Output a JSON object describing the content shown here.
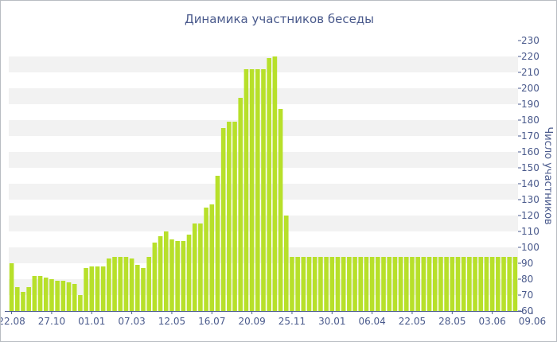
{
  "colors": {
    "bar": "#b7e02a",
    "band": "#f2f2f2",
    "axis": "#4a5a8c",
    "text": "#4a5a8c"
  },
  "chart_data": {
    "type": "bar",
    "title": "Динамика участников беседы",
    "xlabel": "",
    "ylabel": "Число участников",
    "ylim": [
      60,
      230
    ],
    "yticks": [
      60,
      70,
      80,
      90,
      100,
      110,
      120,
      130,
      140,
      150,
      160,
      170,
      180,
      190,
      200,
      210,
      220,
      230
    ],
    "y_axis_position": "right",
    "grid": "alternating horizontal bands",
    "xtick_labels": [
      {
        "index": 0,
        "label": "22.08"
      },
      {
        "index": 7,
        "label": "27.10"
      },
      {
        "index": 14,
        "label": "01.01"
      },
      {
        "index": 21,
        "label": "07.03"
      },
      {
        "index": 28,
        "label": "12.05"
      },
      {
        "index": 35,
        "label": "16.07"
      },
      {
        "index": 42,
        "label": "20.09"
      },
      {
        "index": 49,
        "label": "25.11"
      },
      {
        "index": 56,
        "label": "30.01"
      },
      {
        "index": 63,
        "label": "06.04"
      },
      {
        "index": 70,
        "label": "22.05"
      },
      {
        "index": 77,
        "label": "28.05"
      },
      {
        "index": 84,
        "label": "03.06"
      },
      {
        "index": 91,
        "label": "09.06"
      }
    ],
    "values": [
      90,
      75,
      72,
      75,
      82,
      82,
      81,
      80,
      79,
      79,
      78,
      77,
      70,
      87,
      88,
      88,
      88,
      93,
      94,
      94,
      94,
      93,
      89,
      87,
      94,
      103,
      107,
      110,
      105,
      104,
      104,
      108,
      115,
      115,
      125,
      127,
      145,
      175,
      179,
      179,
      194,
      212,
      212,
      212,
      212,
      219,
      220,
      187,
      120,
      94,
      94,
      94,
      94,
      94,
      94,
      94,
      94,
      94,
      94,
      94,
      94,
      94,
      94,
      94,
      94,
      94,
      94,
      94,
      94,
      94,
      94,
      94,
      94,
      94,
      94,
      94,
      94,
      94,
      94,
      94,
      94,
      94,
      94,
      94,
      94,
      94,
      94,
      94,
      94
    ]
  }
}
